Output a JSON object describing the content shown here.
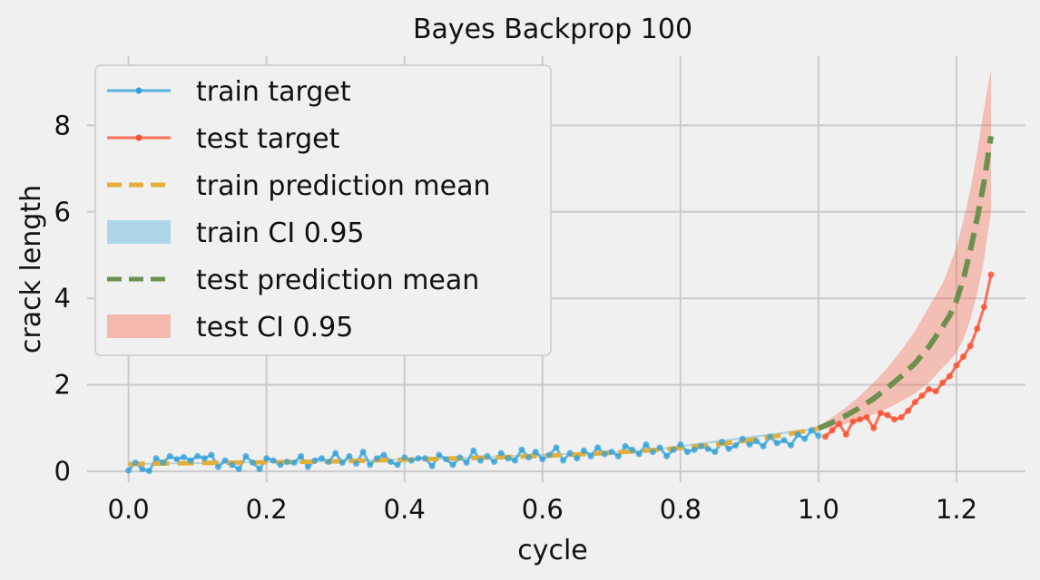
{
  "chart_data": {
    "type": "line",
    "title": "Bayes Backprop 100",
    "xlabel": "cycle",
    "ylabel": "crack length",
    "xlim": [
      -0.06,
      1.3
    ],
    "ylim": [
      -0.25,
      9.6
    ],
    "xticks": [
      0.0,
      0.2,
      0.4,
      0.6,
      0.8,
      1.0,
      1.2
    ],
    "xtick_labels": [
      "0.0",
      "0.2",
      "0.4",
      "0.6",
      "0.8",
      "1.0",
      "1.2"
    ],
    "yticks": [
      0,
      2,
      4,
      6,
      8
    ],
    "ytick_labels": [
      "0",
      "2",
      "4",
      "6",
      "8"
    ],
    "grid": true,
    "legend_position": "upper-left",
    "colors": {
      "train_target": "#30a2da",
      "test_target": "#fc4f30",
      "train_prediction_mean": "#e5ae38",
      "train_ci": "#30a2da",
      "test_prediction_mean": "#6d904f",
      "test_ci": "#fc4f30",
      "background": "#f0f0f0",
      "grid": "#cbcbcb"
    },
    "legend": [
      {
        "key": "train_target",
        "label": "train target",
        "kind": "line-marker"
      },
      {
        "key": "test_target",
        "label": "test target",
        "kind": "line-marker"
      },
      {
        "key": "train_prediction_mean",
        "label": "train prediction mean",
        "kind": "dashed"
      },
      {
        "key": "train_ci",
        "label": "train CI 0.95",
        "kind": "patch"
      },
      {
        "key": "test_prediction_mean",
        "label": "test prediction mean",
        "kind": "dashed"
      },
      {
        "key": "test_ci",
        "label": "test CI 0.95",
        "kind": "patch"
      }
    ],
    "series": [
      {
        "name": "train target",
        "x": [
          0.0,
          0.01,
          0.02,
          0.03,
          0.04,
          0.05,
          0.06,
          0.07,
          0.08,
          0.09,
          0.1,
          0.11,
          0.12,
          0.13,
          0.14,
          0.15,
          0.16,
          0.17,
          0.18,
          0.19,
          0.2,
          0.21,
          0.22,
          0.23,
          0.24,
          0.25,
          0.26,
          0.27,
          0.28,
          0.29,
          0.3,
          0.31,
          0.32,
          0.33,
          0.34,
          0.35,
          0.36,
          0.37,
          0.38,
          0.39,
          0.4,
          0.41,
          0.42,
          0.43,
          0.44,
          0.45,
          0.46,
          0.47,
          0.48,
          0.49,
          0.5,
          0.51,
          0.52,
          0.53,
          0.54,
          0.55,
          0.56,
          0.57,
          0.58,
          0.59,
          0.6,
          0.61,
          0.62,
          0.63,
          0.64,
          0.65,
          0.66,
          0.67,
          0.68,
          0.69,
          0.7,
          0.71,
          0.72,
          0.73,
          0.74,
          0.75,
          0.76,
          0.77,
          0.78,
          0.79,
          0.8,
          0.81,
          0.82,
          0.83,
          0.84,
          0.85,
          0.86,
          0.87,
          0.88,
          0.89,
          0.9,
          0.91,
          0.92,
          0.93,
          0.94,
          0.95,
          0.96,
          0.97,
          0.98,
          0.99,
          1.0
        ],
        "y": [
          0.02,
          0.2,
          0.05,
          0.01,
          0.3,
          0.2,
          0.35,
          0.28,
          0.33,
          0.25,
          0.35,
          0.3,
          0.38,
          0.1,
          0.25,
          0.15,
          0.05,
          0.35,
          0.2,
          0.05,
          0.3,
          0.25,
          0.15,
          0.22,
          0.2,
          0.35,
          0.1,
          0.25,
          0.3,
          0.22,
          0.42,
          0.2,
          0.35,
          0.18,
          0.45,
          0.15,
          0.3,
          0.38,
          0.22,
          0.15,
          0.32,
          0.25,
          0.3,
          0.3,
          0.12,
          0.38,
          0.28,
          0.15,
          0.32,
          0.2,
          0.48,
          0.25,
          0.35,
          0.22,
          0.42,
          0.3,
          0.25,
          0.5,
          0.32,
          0.45,
          0.28,
          0.38,
          0.55,
          0.25,
          0.42,
          0.3,
          0.48,
          0.35,
          0.55,
          0.4,
          0.45,
          0.35,
          0.58,
          0.5,
          0.4,
          0.62,
          0.45,
          0.55,
          0.35,
          0.5,
          0.62,
          0.45,
          0.5,
          0.58,
          0.52,
          0.45,
          0.68,
          0.52,
          0.6,
          0.75,
          0.62,
          0.7,
          0.58,
          0.8,
          0.65,
          0.72,
          0.6,
          0.85,
          0.75,
          0.95,
          0.82
        ]
      },
      {
        "name": "test target",
        "x": [
          1.01,
          1.02,
          1.03,
          1.04,
          1.05,
          1.06,
          1.07,
          1.08,
          1.09,
          1.1,
          1.11,
          1.12,
          1.13,
          1.14,
          1.15,
          1.16,
          1.17,
          1.18,
          1.19,
          1.2,
          1.21,
          1.22,
          1.23,
          1.24,
          1.25
        ],
        "y": [
          0.8,
          0.95,
          1.1,
          0.85,
          1.15,
          1.2,
          1.25,
          1.0,
          1.35,
          1.3,
          1.2,
          1.25,
          1.4,
          1.6,
          1.75,
          1.9,
          1.85,
          2.05,
          2.2,
          2.45,
          2.65,
          2.9,
          3.3,
          3.8,
          4.55
        ]
      },
      {
        "name": "train prediction mean",
        "x": [
          0.0,
          0.05,
          0.1,
          0.15,
          0.2,
          0.25,
          0.3,
          0.35,
          0.4,
          0.45,
          0.5,
          0.55,
          0.6,
          0.65,
          0.7,
          0.75,
          0.8,
          0.85,
          0.9,
          0.95,
          1.0
        ],
        "y": [
          0.17,
          0.18,
          0.19,
          0.2,
          0.21,
          0.22,
          0.23,
          0.25,
          0.27,
          0.29,
          0.31,
          0.33,
          0.36,
          0.39,
          0.43,
          0.48,
          0.54,
          0.62,
          0.72,
          0.84,
          0.99
        ]
      },
      {
        "name": "train CI 0.95",
        "x": [
          0.0,
          0.25,
          0.5,
          0.75,
          1.0
        ],
        "lower": [
          0.15,
          0.2,
          0.29,
          0.46,
          0.96
        ],
        "upper": [
          0.19,
          0.24,
          0.33,
          0.5,
          1.02
        ]
      },
      {
        "name": "test prediction mean",
        "x": [
          1.0,
          1.02,
          1.04,
          1.06,
          1.08,
          1.1,
          1.12,
          1.14,
          1.16,
          1.18,
          1.19,
          1.2,
          1.21,
          1.22,
          1.23,
          1.24,
          1.25
        ],
        "y": [
          0.99,
          1.13,
          1.29,
          1.47,
          1.68,
          1.93,
          2.2,
          2.5,
          2.88,
          3.35,
          3.6,
          3.95,
          4.45,
          5.1,
          5.85,
          6.7,
          7.75
        ]
      },
      {
        "name": "test CI 0.95",
        "x": [
          1.0,
          1.02,
          1.04,
          1.06,
          1.08,
          1.1,
          1.12,
          1.14,
          1.16,
          1.18,
          1.19,
          1.2,
          1.21,
          1.22,
          1.23,
          1.24,
          1.25
        ],
        "lower": [
          0.95,
          1.02,
          1.1,
          1.2,
          1.32,
          1.45,
          1.62,
          1.8,
          2.05,
          2.4,
          2.55,
          2.75,
          3.05,
          3.5,
          4.1,
          4.9,
          6.0
        ],
        "upper": [
          1.05,
          1.25,
          1.48,
          1.75,
          2.05,
          2.4,
          2.8,
          3.25,
          3.8,
          4.35,
          4.75,
          5.2,
          5.8,
          6.5,
          7.4,
          8.4,
          9.3
        ]
      }
    ]
  }
}
